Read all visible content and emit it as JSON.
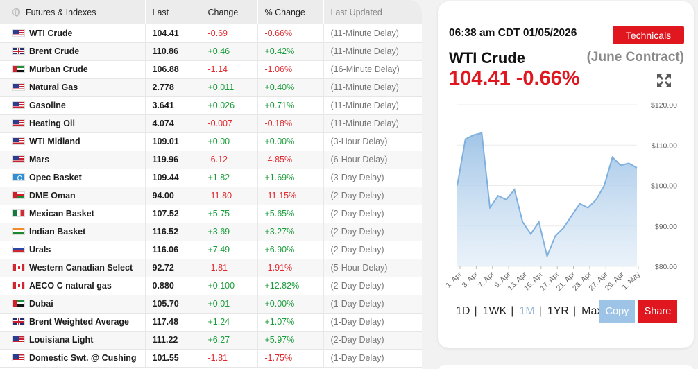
{
  "table": {
    "headers": {
      "name": "Futures & Indexes",
      "last": "Last",
      "change": "Change",
      "pct": "% Change",
      "updated": "Last Updated"
    },
    "rows": [
      {
        "flag": "us",
        "name": "WTI Crude",
        "last": "104.41",
        "change": "-0.69",
        "pct": "-0.66%",
        "updated": "(11-Minute Delay)"
      },
      {
        "flag": "gb",
        "name": "Brent Crude",
        "last": "110.86",
        "change": "+0.46",
        "pct": "+0.42%",
        "updated": "(11-Minute Delay)"
      },
      {
        "flag": "ae",
        "name": "Murban Crude",
        "last": "106.88",
        "change": "-1.14",
        "pct": "-1.06%",
        "updated": "(16-Minute Delay)"
      },
      {
        "flag": "us",
        "name": "Natural Gas",
        "last": "2.778",
        "change": "+0.011",
        "pct": "+0.40%",
        "updated": "(11-Minute Delay)"
      },
      {
        "flag": "us",
        "name": "Gasoline",
        "last": "3.641",
        "change": "+0.026",
        "pct": "+0.71%",
        "updated": "(11-Minute Delay)"
      },
      {
        "flag": "us",
        "name": "Heating Oil",
        "last": "4.074",
        "change": "-0.007",
        "pct": "-0.18%",
        "updated": "(11-Minute Delay)"
      },
      {
        "flag": "us",
        "name": "WTI Midland",
        "last": "109.01",
        "change": "+0.00",
        "pct": "+0.00%",
        "updated": "(3-Hour Delay)"
      },
      {
        "flag": "us",
        "name": "Mars",
        "last": "119.96",
        "change": "-6.12",
        "pct": "-4.85%",
        "updated": "(6-Hour Delay)"
      },
      {
        "flag": "opec",
        "name": "Opec Basket",
        "last": "109.44",
        "change": "+1.82",
        "pct": "+1.69%",
        "updated": "(3-Day Delay)"
      },
      {
        "flag": "om",
        "name": "DME Oman",
        "last": "94.00",
        "change": "-11.80",
        "pct": "-11.15%",
        "updated": "(2-Day Delay)"
      },
      {
        "flag": "mx",
        "name": "Mexican Basket",
        "last": "107.52",
        "change": "+5.75",
        "pct": "+5.65%",
        "updated": "(2-Day Delay)"
      },
      {
        "flag": "in",
        "name": "Indian Basket",
        "last": "116.52",
        "change": "+3.69",
        "pct": "+3.27%",
        "updated": "(2-Day Delay)"
      },
      {
        "flag": "ru",
        "name": "Urals",
        "last": "116.06",
        "change": "+7.49",
        "pct": "+6.90%",
        "updated": "(2-Day Delay)"
      },
      {
        "flag": "ca",
        "name": "Western Canadian Select",
        "last": "92.72",
        "change": "-1.81",
        "pct": "-1.91%",
        "updated": "(5-Hour Delay)"
      },
      {
        "flag": "ca",
        "name": "AECO C natural gas",
        "last": "0.880",
        "change": "+0.100",
        "pct": "+12.82%",
        "updated": "(2-Day Delay)"
      },
      {
        "flag": "ae",
        "name": "Dubai",
        "last": "105.70",
        "change": "+0.01",
        "pct": "+0.00%",
        "updated": "(1-Day Delay)"
      },
      {
        "flag": "gb",
        "name": "Brent Weighted Average",
        "last": "117.48",
        "change": "+1.24",
        "pct": "+1.07%",
        "updated": "(1-Day Delay)"
      },
      {
        "flag": "us",
        "name": "Louisiana Light",
        "last": "111.22",
        "change": "+6.27",
        "pct": "+5.97%",
        "updated": "(2-Day Delay)"
      },
      {
        "flag": "us",
        "name": "Domestic Swt. @ Cushing",
        "last": "101.55",
        "change": "-1.81",
        "pct": "-1.75%",
        "updated": "(1-Day Delay)"
      }
    ]
  },
  "card": {
    "timestamp": "06:38 am CDT 01/05/2026",
    "technicals_label": "Technicals",
    "commodity": "WTI Crude",
    "contract": "(June Contract)",
    "price_line": "104.41 -0.66%",
    "ranges": [
      "1D",
      "1WK",
      "1M",
      "1YR",
      "Max"
    ],
    "active_range": "1M",
    "copy_label": "Copy",
    "share_label": "Share"
  },
  "colors": {
    "accent_red": "#e0171f",
    "positive": "#1a9d3a",
    "negative": "#e0282e",
    "chart_line": "#7fb0dd",
    "copy_button": "#9dc4e6"
  },
  "chart_data": {
    "type": "area",
    "x_tick_labels": [
      "1. Apr",
      "3. Apr",
      "7. Apr",
      "9. Apr",
      "13. Apr",
      "15. Apr",
      "17. Apr",
      "21. Apr",
      "23. Apr",
      "27. Apr",
      "29. Apr",
      "1. May"
    ],
    "y_tick_labels": [
      "$120.00",
      "$110.00",
      "$100.00",
      "$90.00",
      "$80.00"
    ],
    "ylim": [
      80,
      120
    ],
    "points": [
      [
        "1. Apr",
        100.0
      ],
      [
        "3. Apr",
        111.5
      ],
      [
        "6. Apr",
        112.5
      ],
      [
        "7. Apr",
        113.0
      ],
      [
        "8. Apr",
        94.5
      ],
      [
        "9. Apr",
        97.5
      ],
      [
        "10. Apr",
        96.5
      ],
      [
        "13. Apr",
        99.0
      ],
      [
        "14. Apr",
        91.0
      ],
      [
        "15. Apr",
        88.0
      ],
      [
        "16. Apr",
        91.0
      ],
      [
        "17. Apr",
        82.5
      ],
      [
        "20. Apr",
        87.5
      ],
      [
        "21. Apr",
        89.5
      ],
      [
        "22. Apr",
        92.5
      ],
      [
        "23. Apr",
        95.5
      ],
      [
        "24. Apr",
        94.5
      ],
      [
        "27. Apr",
        96.5
      ],
      [
        "28. Apr",
        100.0
      ],
      [
        "29. Apr",
        107.0
      ],
      [
        "30. Apr",
        105.0
      ],
      [
        "1. May",
        105.5
      ],
      [
        "1. May",
        104.4
      ]
    ],
    "grid": true,
    "legend": "none"
  }
}
